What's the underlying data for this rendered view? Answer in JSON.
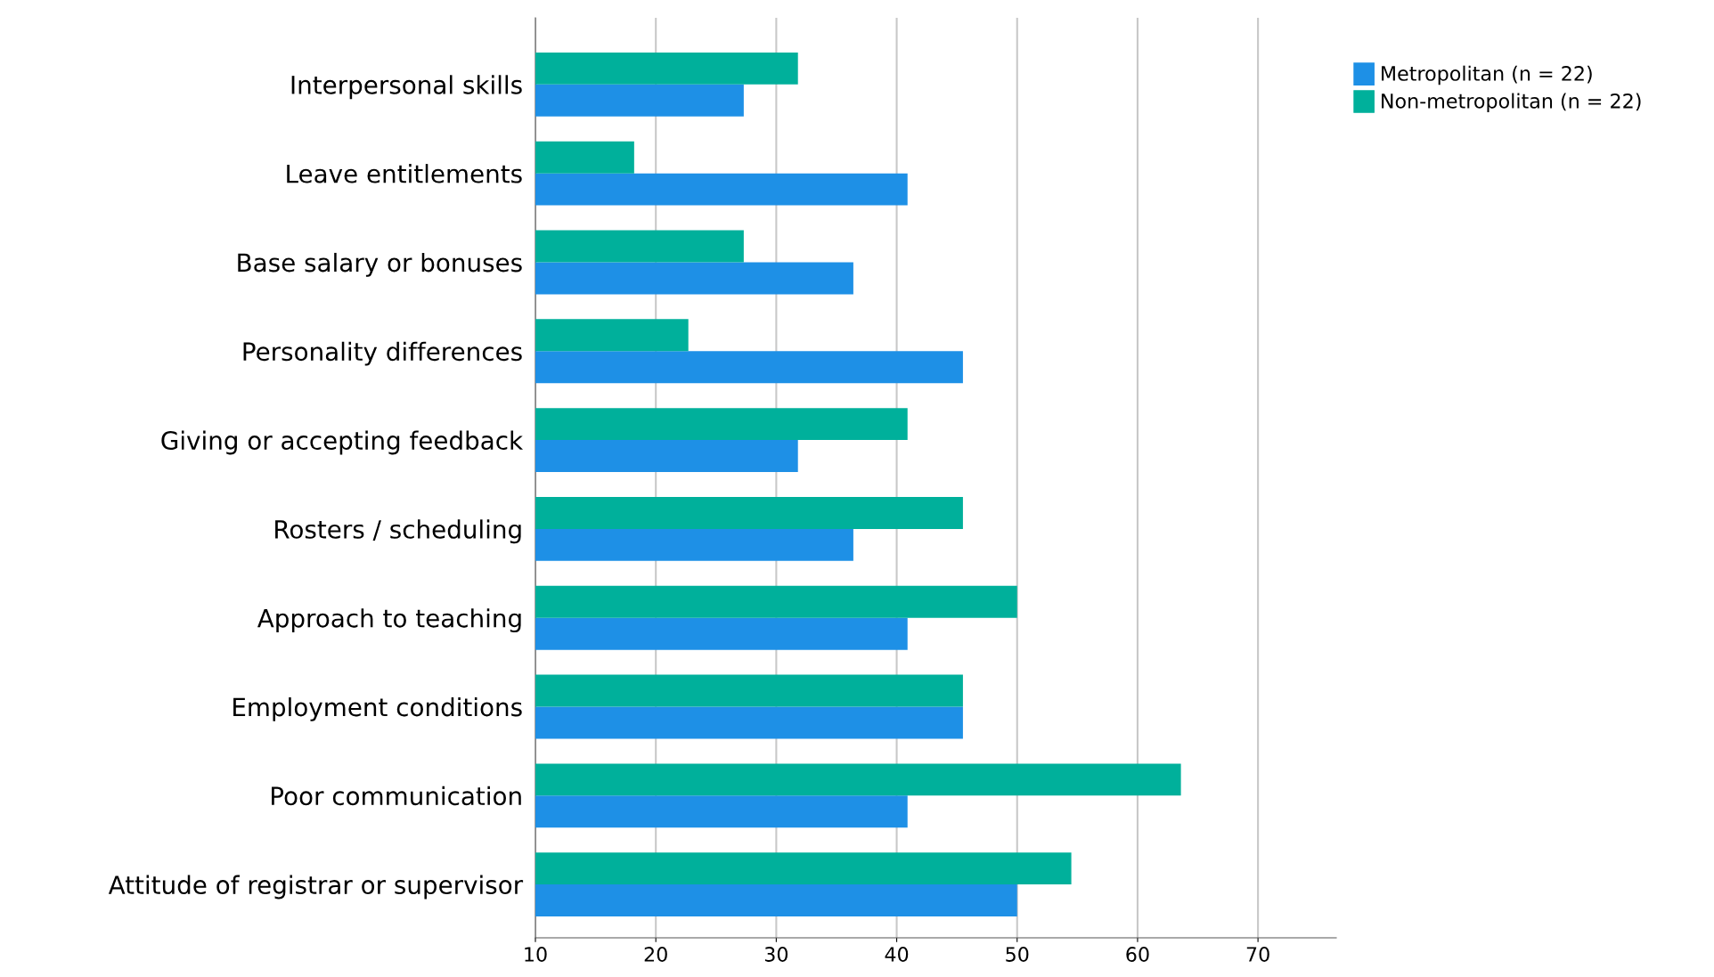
{
  "chart_data": {
    "type": "bar",
    "orientation": "horizontal",
    "categories": [
      "Interpersonal skills",
      "Leave entitlements",
      "Base salary or bonuses",
      "Personality differences",
      "Giving or accepting feedback",
      "Rosters / scheduling",
      "Approach to teaching",
      "Employment conditions",
      "Poor communication",
      "Attitude of registrar or supervisor"
    ],
    "series": [
      {
        "name": "Metropolitan (n = 22)",
        "color": "#1e90e6",
        "values": [
          27.3,
          40.9,
          36.4,
          45.5,
          31.8,
          36.4,
          40.9,
          45.5,
          40.9,
          50.0
        ]
      },
      {
        "name": "Non-metropolitan (n = 22)",
        "color": "#00b09b",
        "values": [
          31.8,
          18.2,
          27.3,
          22.7,
          40.9,
          45.5,
          50.0,
          45.5,
          63.6,
          54.5
        ]
      }
    ],
    "xlim": [
      10,
      76.5
    ],
    "xticks": [
      10,
      20,
      30,
      40,
      50,
      60,
      70
    ],
    "grid": "x",
    "legend": "top right"
  }
}
